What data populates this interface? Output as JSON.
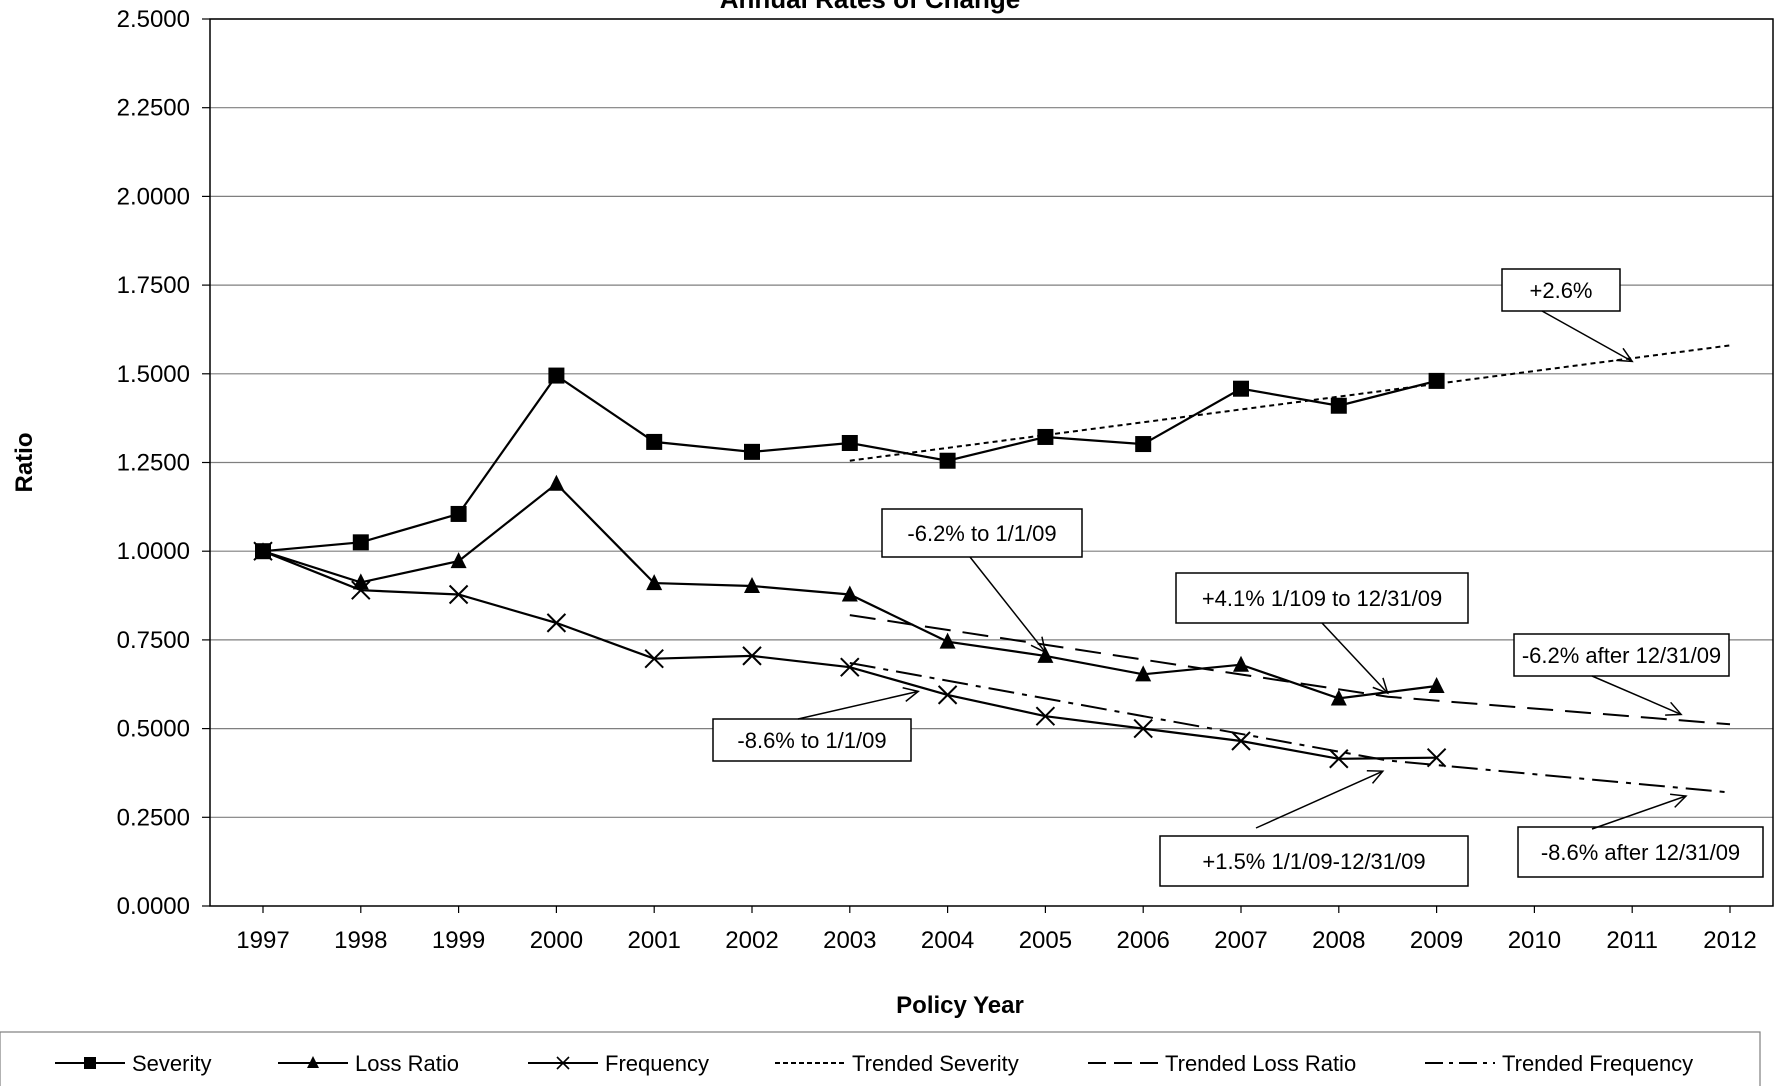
{
  "chart_data": {
    "type": "line",
    "title": "Annual Rates of Change",
    "xlabel": "Policy Year",
    "ylabel": "Ratio",
    "x": [
      "1997",
      "1998",
      "1999",
      "2000",
      "2001",
      "2002",
      "2003",
      "2004",
      "2005",
      "2006",
      "2007",
      "2008",
      "2009",
      "2010",
      "2011",
      "2012"
    ],
    "ylim": [
      0,
      2.5
    ],
    "y_ticks": [
      "0.0000",
      "0.2500",
      "0.5000",
      "0.7500",
      "1.0000",
      "1.2500",
      "1.5000",
      "1.7500",
      "2.0000",
      "2.2500",
      "2.5000"
    ],
    "grid": true,
    "series": [
      {
        "name": "Severity",
        "marker": "square",
        "dash": "solid",
        "x": [
          1997,
          1998,
          1999,
          2000,
          2001,
          2002,
          2003,
          2004,
          2005,
          2006,
          2007,
          2008,
          2009
        ],
        "values": [
          1.0,
          1.025,
          1.105,
          1.495,
          1.308,
          1.28,
          1.305,
          1.255,
          1.322,
          1.302,
          1.458,
          1.41,
          1.48
        ]
      },
      {
        "name": "Loss Ratio",
        "marker": "triangle",
        "dash": "solid",
        "x": [
          1997,
          1998,
          1999,
          2000,
          2001,
          2002,
          2003,
          2004,
          2005,
          2006,
          2007,
          2008,
          2009
        ],
        "values": [
          1.0,
          0.912,
          0.972,
          1.19,
          0.91,
          0.902,
          0.878,
          0.745,
          0.705,
          0.653,
          0.68,
          0.585,
          0.62
        ]
      },
      {
        "name": "Frequency",
        "marker": "x",
        "dash": "solid",
        "x": [
          1997,
          1998,
          1999,
          2000,
          2001,
          2002,
          2003,
          2004,
          2005,
          2006,
          2007,
          2008,
          2009
        ],
        "values": [
          1.0,
          0.89,
          0.878,
          0.798,
          0.697,
          0.705,
          0.673,
          0.595,
          0.535,
          0.5,
          0.465,
          0.415,
          0.418
        ]
      },
      {
        "name": "Trended Severity",
        "marker": "none",
        "dash": "dotted",
        "x": [
          2003,
          2012
        ],
        "values": [
          1.255,
          1.58
        ]
      },
      {
        "name": "Trended Loss Ratio",
        "marker": "none",
        "dash": "dashed",
        "x": [
          2003,
          2008.5,
          2012
        ],
        "values": [
          0.82,
          0.59,
          0.512
        ]
      },
      {
        "name": "Trended Frequency",
        "marker": "none",
        "dash": "dashdot",
        "x": [
          2003,
          2008.5,
          2012
        ],
        "values": [
          0.685,
          0.41,
          0.32
        ]
      }
    ],
    "annotations": [
      {
        "text": "+2.6%",
        "target_x": 2011,
        "target_y": 1.535
      },
      {
        "text": "-6.2% to 1/1/09",
        "target_x": 2005,
        "target_y": 0.715
      },
      {
        "text": "+4.1% 1/109 to 12/31/09",
        "target_x": 2008.5,
        "target_y": 0.6
      },
      {
        "text": "-6.2% after 12/31/09",
        "target_x": 2011.5,
        "target_y": 0.54
      },
      {
        "text": "-8.6% to 1/1/09",
        "target_x": 2003.7,
        "target_y": 0.605
      },
      {
        "text": "+1.5%   1/1/09-12/31/09",
        "target_x": 2008.45,
        "target_y": 0.38
      },
      {
        "text": "-8.6% after 12/31/09",
        "target_x": 2011.55,
        "target_y": 0.31
      }
    ],
    "legend": {
      "position": "bottom",
      "entries": [
        "Severity",
        "Loss Ratio",
        "Frequency",
        "Trended Severity",
        "Trended Loss Ratio",
        "Trended Frequency"
      ]
    }
  }
}
